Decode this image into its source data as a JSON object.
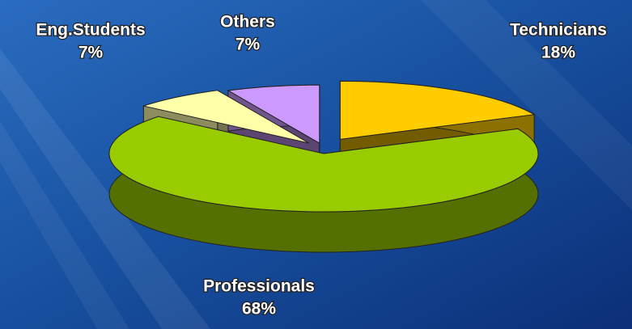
{
  "chart_data": {
    "type": "pie",
    "categories": [
      "Technicians",
      "Professionals",
      "Eng.Students",
      "Others"
    ],
    "values": [
      18,
      68,
      7,
      7
    ],
    "value_labels": [
      "18%",
      "68%",
      "7%",
      "7%"
    ],
    "colors": [
      "#ffcc00",
      "#99cc00",
      "#ffffaa",
      "#cc99ff"
    ]
  }
}
